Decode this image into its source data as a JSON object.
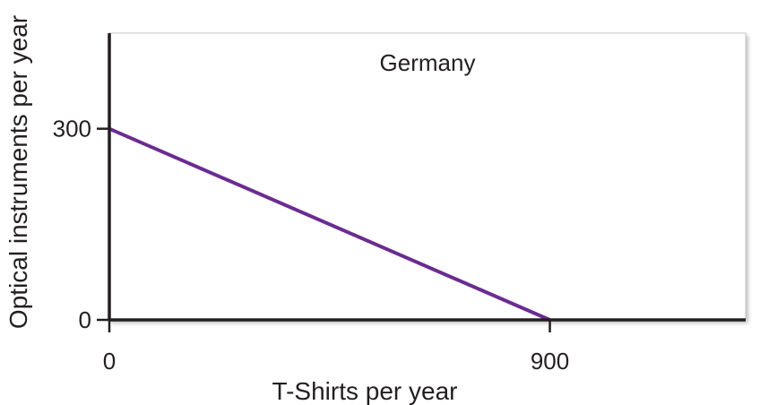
{
  "chart_data": {
    "type": "line",
    "title": "Germany",
    "xlabel": "T-Shirts per year",
    "ylabel": "Optical instruments per year",
    "x": [
      0,
      900
    ],
    "series": [
      {
        "values": [
          300,
          0
        ],
        "color": "#6a2c91"
      }
    ],
    "xticks": [
      0,
      900
    ],
    "yticks": [
      0,
      300
    ],
    "xtick_labels": [
      "0",
      "900"
    ],
    "ytick_labels": [
      "0",
      "300"
    ],
    "xlim": [
      0,
      1300
    ],
    "ylim": [
      0,
      450
    ],
    "grid": false,
    "legend": "none",
    "colors": {
      "line": "#6a2c91",
      "axis": "#231f20",
      "panel_border": "#bdbdbd",
      "text": "#231f20"
    }
  }
}
